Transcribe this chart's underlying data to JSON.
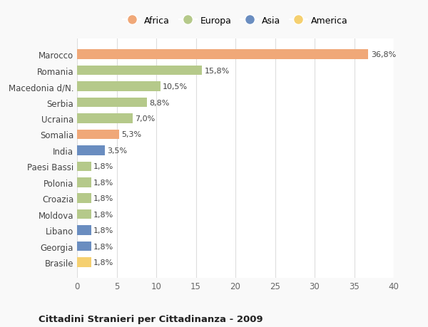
{
  "categories": [
    "Marocco",
    "Romania",
    "Macedonia d/N.",
    "Serbia",
    "Ucraina",
    "Somalia",
    "India",
    "Paesi Bassi",
    "Polonia",
    "Croazia",
    "Moldova",
    "Libano",
    "Georgia",
    "Brasile"
  ],
  "values": [
    36.8,
    15.8,
    10.5,
    8.8,
    7.0,
    5.3,
    3.5,
    1.8,
    1.8,
    1.8,
    1.8,
    1.8,
    1.8,
    1.8
  ],
  "labels": [
    "36,8%",
    "15,8%",
    "10,5%",
    "8,8%",
    "7,0%",
    "5,3%",
    "3,5%",
    "1,8%",
    "1,8%",
    "1,8%",
    "1,8%",
    "1,8%",
    "1,8%",
    "1,8%"
  ],
  "colors": [
    "#F0A878",
    "#B5C98A",
    "#B5C98A",
    "#B5C98A",
    "#B5C98A",
    "#F0A878",
    "#6A8DC0",
    "#B5C98A",
    "#B5C98A",
    "#B5C98A",
    "#B5C98A",
    "#6A8DC0",
    "#6A8DC0",
    "#F5D070"
  ],
  "legend_labels": [
    "Africa",
    "Europa",
    "Asia",
    "America"
  ],
  "legend_colors": [
    "#F0A878",
    "#B5C98A",
    "#6A8DC0",
    "#F5D070"
  ],
  "title": "Cittadini Stranieri per Cittadinanza - 2009",
  "xlim": [
    0,
    40
  ],
  "xticks": [
    0,
    5,
    10,
    15,
    20,
    25,
    30,
    35,
    40
  ],
  "bg_color": "#f9f9f9",
  "bar_bg_color": "#ffffff",
  "grid_color": "#dddddd"
}
